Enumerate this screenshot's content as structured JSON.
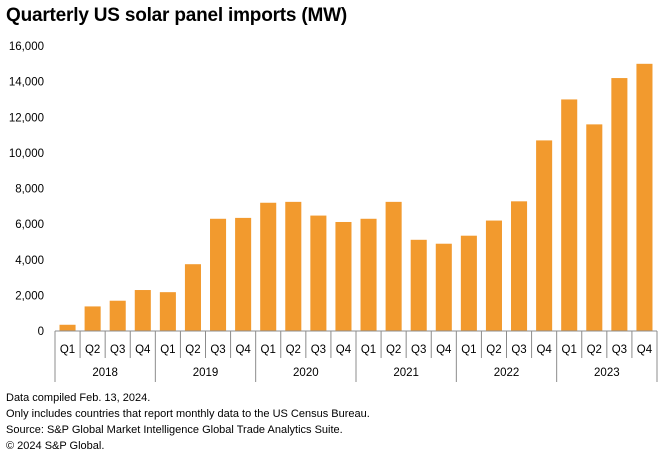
{
  "chart_data": {
    "type": "bar",
    "title": "Quarterly US solar panel imports (MW)",
    "quarter_labels": [
      "Q1",
      "Q2",
      "Q3",
      "Q4"
    ],
    "years": [
      "2018",
      "2019",
      "2020",
      "2021",
      "2022",
      "2023"
    ],
    "categories": [
      "Q1 2018",
      "Q2 2018",
      "Q3 2018",
      "Q4 2018",
      "Q1 2019",
      "Q2 2019",
      "Q3 2019",
      "Q4 2019",
      "Q1 2020",
      "Q2 2020",
      "Q3 2020",
      "Q4 2020",
      "Q1 2021",
      "Q2 2021",
      "Q3 2021",
      "Q4 2021",
      "Q1 2022",
      "Q2 2022",
      "Q3 2022",
      "Q4 2022",
      "Q1 2023",
      "Q2 2023",
      "Q3 2023",
      "Q4 2023"
    ],
    "values": [
      350,
      1380,
      1700,
      2300,
      2180,
      3750,
      6300,
      6350,
      7200,
      7250,
      6480,
      6120,
      6300,
      7250,
      5120,
      4900,
      5350,
      6200,
      7280,
      10700,
      13000,
      11600,
      14200,
      15000
    ],
    "ylim": [
      0,
      16000
    ],
    "yticks": [
      0,
      2000,
      4000,
      6000,
      8000,
      10000,
      12000,
      14000,
      16000
    ],
    "ytick_labels": [
      "0",
      "2,000",
      "4,000",
      "6,000",
      "8,000",
      "10,000",
      "12,000",
      "14,000",
      "16,000"
    ],
    "xlabel": "",
    "ylabel": "",
    "grid": false,
    "bar_color": "#f29a2e",
    "axis_color": "#8c8c8c"
  },
  "footnotes": {
    "line1": "Data compiled Feb. 13, 2024.",
    "line2": "Only includes countries that report monthly data to the US Census Bureau.",
    "line3": "Source: S&P Global Market Intelligence Global Trade Analytics Suite.",
    "line4": "© 2024 S&P Global."
  }
}
